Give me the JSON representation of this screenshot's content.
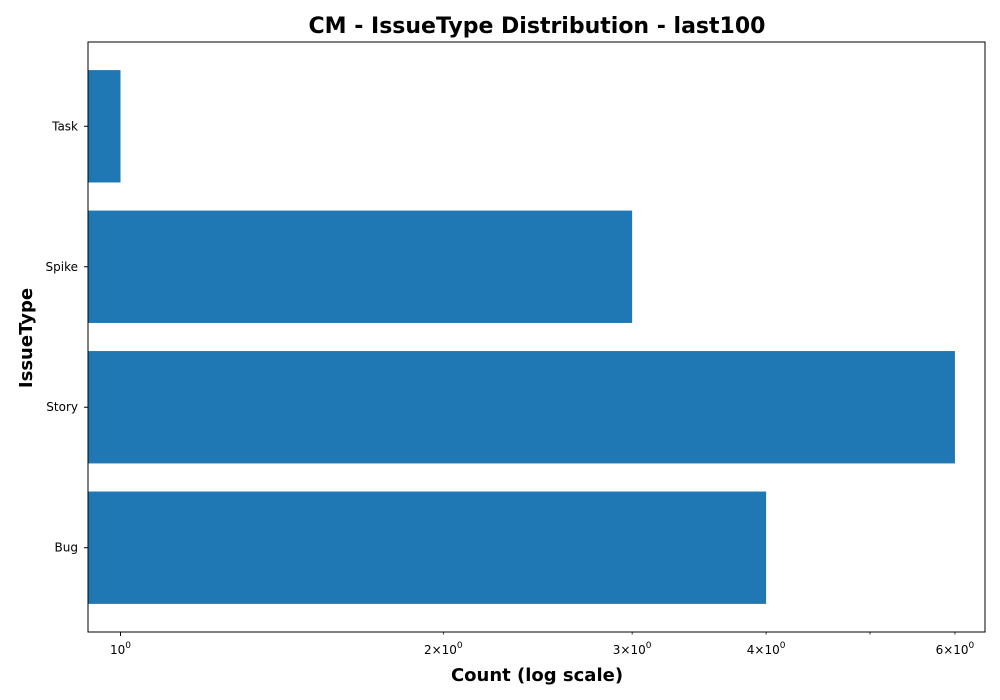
{
  "chart_data": {
    "type": "bar",
    "orientation": "horizontal",
    "title": "CM - IssueType Distribution - last100",
    "xlabel": "Count (log scale)",
    "ylabel": "IssueType",
    "xscale": "log",
    "xlim": [
      0.9326,
      6.4
    ],
    "categories": [
      "Bug",
      "Story",
      "Spike",
      "Task"
    ],
    "values": [
      4,
      6,
      3,
      1
    ],
    "bar_color": "#1f77b4",
    "x_major_ticks": [
      {
        "value": 1,
        "label": "10^0",
        "base": "10",
        "exp": "0"
      }
    ],
    "x_minor_ticks": [
      {
        "value": 2,
        "label": "2×10^0",
        "mant": "2",
        "base": "10",
        "exp": "0"
      },
      {
        "value": 3,
        "label": "3×10^0",
        "mant": "3",
        "base": "10",
        "exp": "0"
      },
      {
        "value": 4,
        "label": "4×10^0",
        "mant": "4",
        "base": "10",
        "exp": "0"
      },
      {
        "value": 5,
        "label": "",
        "mant": "",
        "base": "",
        "exp": ""
      },
      {
        "value": 6,
        "label": "6×10^0",
        "mant": "6",
        "base": "10",
        "exp": "0"
      }
    ],
    "grid": false
  }
}
